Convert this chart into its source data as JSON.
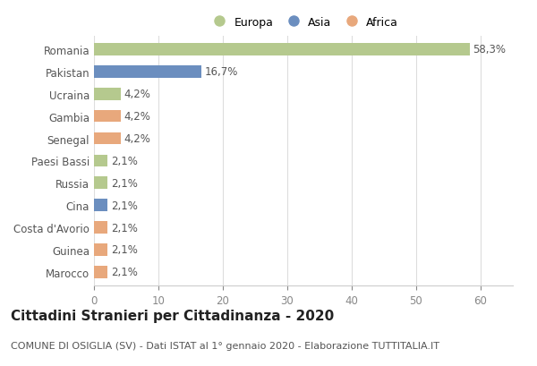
{
  "categories": [
    "Romania",
    "Pakistan",
    "Ucraina",
    "Gambia",
    "Senegal",
    "Paesi Bassi",
    "Russia",
    "Cina",
    "Costa d'Avorio",
    "Guinea",
    "Marocco"
  ],
  "values": [
    58.3,
    16.7,
    4.2,
    4.2,
    4.2,
    2.1,
    2.1,
    2.1,
    2.1,
    2.1,
    2.1
  ],
  "labels": [
    "58,3%",
    "16,7%",
    "4,2%",
    "4,2%",
    "4,2%",
    "2,1%",
    "2,1%",
    "2,1%",
    "2,1%",
    "2,1%",
    "2,1%"
  ],
  "colors": [
    "#b5c98e",
    "#6b8ebf",
    "#b5c98e",
    "#e8a87c",
    "#e8a87c",
    "#b5c98e",
    "#b5c98e",
    "#6b8ebf",
    "#e8a87c",
    "#e8a87c",
    "#e8a87c"
  ],
  "legend_labels": [
    "Europa",
    "Asia",
    "Africa"
  ],
  "legend_colors": [
    "#b5c98e",
    "#6b8ebf",
    "#e8a87c"
  ],
  "title": "Cittadini Stranieri per Cittadinanza - 2020",
  "subtitle": "COMUNE DI OSIGLIA (SV) - Dati ISTAT al 1° gennaio 2020 - Elaborazione TUTTITALIA.IT",
  "xlim": [
    0,
    65
  ],
  "xticks": [
    0,
    10,
    20,
    30,
    40,
    50,
    60
  ],
  "background_color": "#ffffff",
  "bar_height": 0.55,
  "grid_color": "#dddddd",
  "label_fontsize": 8.5,
  "tick_fontsize": 8.5,
  "title_fontsize": 11,
  "subtitle_fontsize": 8
}
